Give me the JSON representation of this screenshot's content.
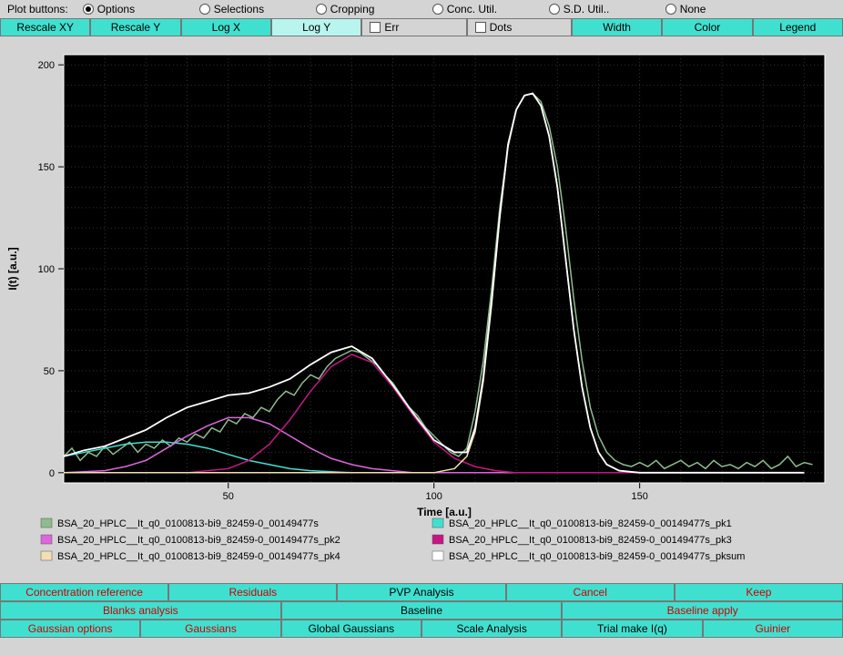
{
  "toolbar": {
    "plot_buttons_label": "Plot buttons:",
    "radios": [
      {
        "label": "Options",
        "checked": true
      },
      {
        "label": "Selections",
        "checked": false
      },
      {
        "label": "Cropping",
        "checked": false
      },
      {
        "label": "Conc. Util.",
        "checked": false
      },
      {
        "label": "S.D. Util..",
        "checked": false
      },
      {
        "label": "None",
        "checked": false
      }
    ],
    "row2_buttons": [
      "Rescale XY",
      "Rescale Y",
      "Log X",
      "Log Y"
    ],
    "row2_active_index": 3,
    "row2_checks": [
      "Err",
      "Dots"
    ],
    "row2_right_buttons": [
      "Width",
      "Color",
      "Legend"
    ]
  },
  "chart": {
    "type": "line",
    "background_color": "#000000",
    "plot_bg": "#000000",
    "outer_bg": "#d4d4d4",
    "grid_color": "#333333",
    "axis_color": "#ffffff",
    "tick_color": "#000000",
    "label_color": "#000000",
    "xlabel": "Time [a.u.]",
    "ylabel": "I(t) [a.u.]",
    "label_fontsize": 12,
    "tick_fontsize": 11,
    "xlim": [
      10,
      195
    ],
    "ylim": [
      -5,
      205
    ],
    "xticks": [
      50,
      100,
      150
    ],
    "yticks": [
      0,
      50,
      100,
      150,
      200
    ],
    "grid_step_x": 10,
    "grid_step_y": 10,
    "series": [
      {
        "name": "raw",
        "color": "#8fbc8f",
        "width": 1.5,
        "data": [
          [
            10,
            8
          ],
          [
            12,
            12
          ],
          [
            14,
            6
          ],
          [
            16,
            10
          ],
          [
            18,
            8
          ],
          [
            20,
            13
          ],
          [
            22,
            9
          ],
          [
            24,
            12
          ],
          [
            26,
            15
          ],
          [
            28,
            10
          ],
          [
            30,
            14
          ],
          [
            32,
            12
          ],
          [
            34,
            16
          ],
          [
            36,
            13
          ],
          [
            38,
            17
          ],
          [
            40,
            15
          ],
          [
            42,
            19
          ],
          [
            44,
            17
          ],
          [
            46,
            22
          ],
          [
            48,
            20
          ],
          [
            50,
            26
          ],
          [
            52,
            24
          ],
          [
            54,
            29
          ],
          [
            56,
            27
          ],
          [
            58,
            32
          ],
          [
            60,
            30
          ],
          [
            62,
            36
          ],
          [
            64,
            40
          ],
          [
            66,
            38
          ],
          [
            68,
            44
          ],
          [
            70,
            48
          ],
          [
            72,
            46
          ],
          [
            74,
            52
          ],
          [
            76,
            56
          ],
          [
            78,
            58
          ],
          [
            80,
            60
          ],
          [
            82,
            59
          ],
          [
            84,
            56
          ],
          [
            86,
            53
          ],
          [
            88,
            48
          ],
          [
            90,
            44
          ],
          [
            92,
            38
          ],
          [
            94,
            32
          ],
          [
            96,
            28
          ],
          [
            98,
            22
          ],
          [
            100,
            18
          ],
          [
            102,
            14
          ],
          [
            104,
            10
          ],
          [
            106,
            8
          ],
          [
            108,
            12
          ],
          [
            110,
            30
          ],
          [
            112,
            55
          ],
          [
            114,
            90
          ],
          [
            116,
            130
          ],
          [
            118,
            160
          ],
          [
            120,
            178
          ],
          [
            122,
            185
          ],
          [
            124,
            186
          ],
          [
            126,
            182
          ],
          [
            128,
            170
          ],
          [
            130,
            150
          ],
          [
            132,
            120
          ],
          [
            134,
            85
          ],
          [
            136,
            55
          ],
          [
            138,
            32
          ],
          [
            140,
            18
          ],
          [
            142,
            10
          ],
          [
            144,
            6
          ],
          [
            146,
            4
          ],
          [
            148,
            3
          ],
          [
            150,
            5
          ],
          [
            152,
            3
          ],
          [
            154,
            6
          ],
          [
            156,
            2
          ],
          [
            158,
            4
          ],
          [
            160,
            6
          ],
          [
            162,
            3
          ],
          [
            164,
            5
          ],
          [
            166,
            2
          ],
          [
            168,
            6
          ],
          [
            170,
            3
          ],
          [
            172,
            4
          ],
          [
            174,
            2
          ],
          [
            176,
            5
          ],
          [
            178,
            3
          ],
          [
            180,
            6
          ],
          [
            182,
            2
          ],
          [
            184,
            4
          ],
          [
            186,
            8
          ],
          [
            188,
            3
          ],
          [
            190,
            5
          ],
          [
            192,
            4
          ]
        ]
      },
      {
        "name": "pk1",
        "color": "#40e0d0",
        "width": 1.5,
        "data": [
          [
            10,
            8
          ],
          [
            15,
            10
          ],
          [
            20,
            12
          ],
          [
            25,
            14
          ],
          [
            30,
            15
          ],
          [
            35,
            15
          ],
          [
            40,
            14
          ],
          [
            45,
            12
          ],
          [
            50,
            9
          ],
          [
            55,
            6
          ],
          [
            60,
            4
          ],
          [
            65,
            2
          ],
          [
            70,
            1
          ],
          [
            75,
            0.5
          ],
          [
            80,
            0
          ],
          [
            190,
            0
          ]
        ]
      },
      {
        "name": "pk2",
        "color": "#dd66dd",
        "width": 1.5,
        "data": [
          [
            10,
            0
          ],
          [
            20,
            1
          ],
          [
            25,
            3
          ],
          [
            30,
            6
          ],
          [
            35,
            12
          ],
          [
            40,
            18
          ],
          [
            45,
            23
          ],
          [
            50,
            27
          ],
          [
            55,
            27
          ],
          [
            60,
            24
          ],
          [
            65,
            18
          ],
          [
            70,
            12
          ],
          [
            75,
            7
          ],
          [
            80,
            4
          ],
          [
            85,
            2
          ],
          [
            90,
            1
          ],
          [
            95,
            0
          ],
          [
            190,
            0
          ]
        ]
      },
      {
        "name": "pk3",
        "color": "#c71585",
        "width": 1.5,
        "data": [
          [
            10,
            0
          ],
          [
            40,
            0
          ],
          [
            50,
            2
          ],
          [
            55,
            6
          ],
          [
            60,
            14
          ],
          [
            65,
            26
          ],
          [
            70,
            40
          ],
          [
            75,
            52
          ],
          [
            80,
            58
          ],
          [
            85,
            54
          ],
          [
            90,
            42
          ],
          [
            95,
            28
          ],
          [
            100,
            15
          ],
          [
            105,
            7
          ],
          [
            110,
            3
          ],
          [
            115,
            1
          ],
          [
            120,
            0
          ],
          [
            190,
            0
          ]
        ]
      },
      {
        "name": "pk4",
        "color": "#f5deb3",
        "width": 1.5,
        "data": [
          [
            10,
            0
          ],
          [
            100,
            0
          ],
          [
            105,
            2
          ],
          [
            108,
            8
          ],
          [
            110,
            20
          ],
          [
            112,
            45
          ],
          [
            114,
            82
          ],
          [
            116,
            125
          ],
          [
            118,
            160
          ],
          [
            120,
            178
          ],
          [
            122,
            185
          ],
          [
            124,
            186
          ],
          [
            126,
            180
          ],
          [
            128,
            165
          ],
          [
            130,
            140
          ],
          [
            132,
            105
          ],
          [
            134,
            70
          ],
          [
            136,
            42
          ],
          [
            138,
            22
          ],
          [
            140,
            10
          ],
          [
            142,
            4
          ],
          [
            145,
            1
          ],
          [
            150,
            0
          ],
          [
            190,
            0
          ]
        ]
      },
      {
        "name": "pksum",
        "color": "#ffffff",
        "width": 1.8,
        "data": [
          [
            10,
            8
          ],
          [
            15,
            11
          ],
          [
            20,
            13
          ],
          [
            25,
            17
          ],
          [
            30,
            21
          ],
          [
            35,
            27
          ],
          [
            40,
            32
          ],
          [
            45,
            35
          ],
          [
            50,
            38
          ],
          [
            55,
            39
          ],
          [
            60,
            42
          ],
          [
            65,
            46
          ],
          [
            70,
            53
          ],
          [
            75,
            59
          ],
          [
            80,
            62
          ],
          [
            85,
            56
          ],
          [
            90,
            43
          ],
          [
            95,
            29
          ],
          [
            100,
            16
          ],
          [
            105,
            10
          ],
          [
            108,
            10
          ],
          [
            110,
            22
          ],
          [
            112,
            47
          ],
          [
            114,
            84
          ],
          [
            116,
            126
          ],
          [
            118,
            161
          ],
          [
            120,
            178
          ],
          [
            122,
            185
          ],
          [
            124,
            186
          ],
          [
            126,
            180
          ],
          [
            128,
            165
          ],
          [
            130,
            140
          ],
          [
            132,
            105
          ],
          [
            134,
            70
          ],
          [
            136,
            42
          ],
          [
            138,
            22
          ],
          [
            140,
            10
          ],
          [
            142,
            4
          ],
          [
            145,
            1
          ],
          [
            150,
            0
          ],
          [
            190,
            0
          ]
        ]
      }
    ],
    "legend_items": [
      {
        "color": "#8fbc8f",
        "label": "BSA_20_HPLC__It_q0_0100813-bi9_82459-0_00149477s"
      },
      {
        "color": "#40e0d0",
        "label": "BSA_20_HPLC__It_q0_0100813-bi9_82459-0_00149477s_pk1"
      },
      {
        "color": "#dd66dd",
        "label": "BSA_20_HPLC__It_q0_0100813-bi9_82459-0_00149477s_pk2"
      },
      {
        "color": "#c71585",
        "label": "BSA_20_HPLC__It_q0_0100813-bi9_82459-0_00149477s_pk3"
      },
      {
        "color": "#f5deb3",
        "label": "BSA_20_HPLC__It_q0_0100813-bi9_82459-0_00149477s_pk4"
      },
      {
        "color": "#ffffff",
        "label": "BSA_20_HPLC__It_q0_0100813-bi9_82459-0_00149477s_pksum"
      }
    ]
  },
  "bottom": {
    "row1": [
      {
        "label": "Concentration reference",
        "red": true
      },
      {
        "label": "Residuals",
        "red": true
      },
      {
        "label": "PVP Analysis",
        "red": false
      },
      {
        "label": "Cancel",
        "red": true
      },
      {
        "label": "Keep",
        "red": true
      }
    ],
    "row2": [
      {
        "label": "Blanks analysis",
        "red": true
      },
      {
        "label": "Baseline",
        "red": false
      },
      {
        "label": "Baseline apply",
        "red": true
      }
    ],
    "row3": [
      {
        "label": "Gaussian options",
        "red": true
      },
      {
        "label": "Gaussians",
        "red": true
      },
      {
        "label": "Global Gaussians",
        "red": false
      },
      {
        "label": "Scale Analysis",
        "red": false
      },
      {
        "label": "Trial make I(q)",
        "red": false
      },
      {
        "label": "Guinier",
        "red": true
      }
    ]
  }
}
